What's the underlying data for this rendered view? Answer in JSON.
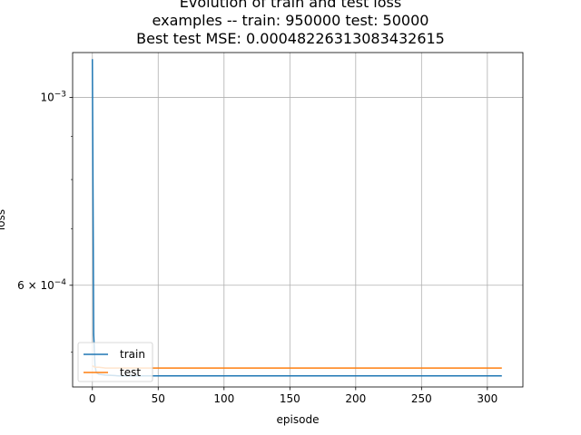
{
  "chart_data": {
    "type": "line",
    "title_lines": [
      "Evolution of train and test loss",
      "examples -- train: 950000 test: 50000",
      "Best test MSE: 0.00048226313083432615"
    ],
    "xlabel": "episode",
    "ylabel": "loss",
    "xlim": [
      -15,
      327
    ],
    "ylim": [
      0.000455,
      0.00113
    ],
    "yscale": "log",
    "grid": true,
    "legend_position": "lower-left",
    "x_ticks": [
      0,
      50,
      100,
      150,
      200,
      250,
      300
    ],
    "x_tick_labels": [
      "0",
      "50",
      "100",
      "150",
      "200",
      "250",
      "300"
    ],
    "y_ticks": [
      0.001,
      0.0006
    ],
    "y_tick_labels": [
      {
        "base": "10",
        "exp": "−3"
      },
      {
        "base": "6 × 10",
        "exp": "−4"
      }
    ],
    "y_minor_ticks": [
      0.0005,
      0.0007,
      0.0008,
      0.0009
    ],
    "series": [
      {
        "name": "train",
        "color": "#1f77b4",
        "x": [
          0,
          1,
          2,
          3,
          5,
          10,
          20,
          50,
          100,
          150,
          200,
          250,
          300,
          311
        ],
        "y": [
          0.00111,
          0.000525,
          0.000482,
          0.000473,
          0.000471,
          0.00047,
          0.000469,
          0.000469,
          0.000469,
          0.000469,
          0.000469,
          0.000469,
          0.000469,
          0.000469
        ]
      },
      {
        "name": "test",
        "color": "#ff7f0e",
        "x": [
          0,
          1,
          2,
          3,
          5,
          10,
          20,
          50,
          100,
          150,
          200,
          250,
          300,
          311
        ],
        "y": [
          0.000482,
          0.000481,
          0.00048,
          0.00048,
          0.00048,
          0.000479,
          0.000479,
          0.000479,
          0.000479,
          0.000479,
          0.000479,
          0.000479,
          0.000479,
          0.000479
        ]
      }
    ]
  }
}
